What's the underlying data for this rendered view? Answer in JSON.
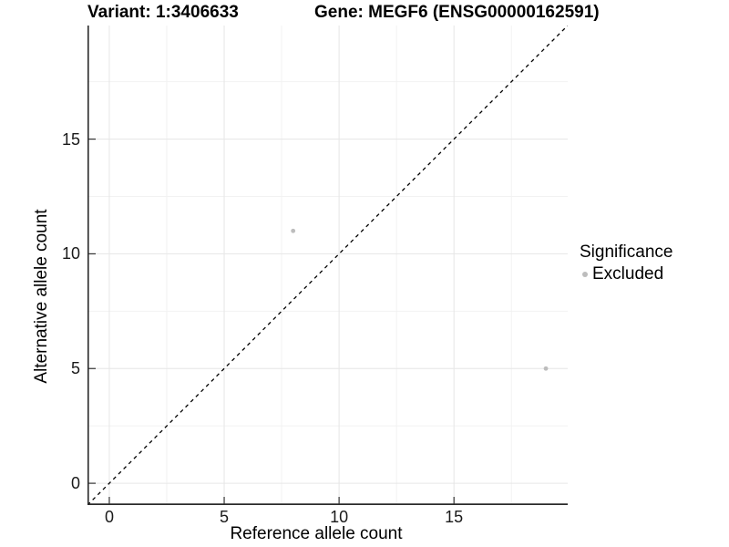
{
  "title": {
    "variant": "Variant: 1:3406633",
    "gene": "Gene: MEGF6 (ENSG00000162591)"
  },
  "chart_data": {
    "type": "scatter",
    "title": "Variant: 1:3406633    Gene: MEGF6 (ENSG00000162591)",
    "xlabel": "Reference allele count",
    "ylabel": "Alternative allele count",
    "xlim": [
      -0.95,
      19.95
    ],
    "ylim": [
      -0.95,
      19.95
    ],
    "x_ticks": [
      0,
      5,
      10,
      15
    ],
    "y_ticks": [
      0,
      5,
      10,
      15
    ],
    "grid": {
      "major": true,
      "minor": true
    },
    "series": [
      {
        "name": "Excluded",
        "color": "#bdbdbd",
        "points": [
          {
            "x": 8,
            "y": 11
          },
          {
            "x": 19,
            "y": 5
          }
        ]
      }
    ],
    "reference_line": {
      "type": "identity",
      "slope": 1,
      "intercept": 0,
      "style": "dashed",
      "color": "#000000"
    },
    "legend": {
      "title": "Significance",
      "position": "right",
      "entries": [
        {
          "label": "Excluded",
          "color": "#bdbdbd"
        }
      ]
    }
  },
  "colors": {
    "background": "#ffffff",
    "axis_line": "#2b2b2b",
    "tick_mark": "#333333",
    "grid_major": "#e6e6e6",
    "grid_minor": "#f2f2f2",
    "point": "#bdbdbd",
    "text": "#000000"
  }
}
